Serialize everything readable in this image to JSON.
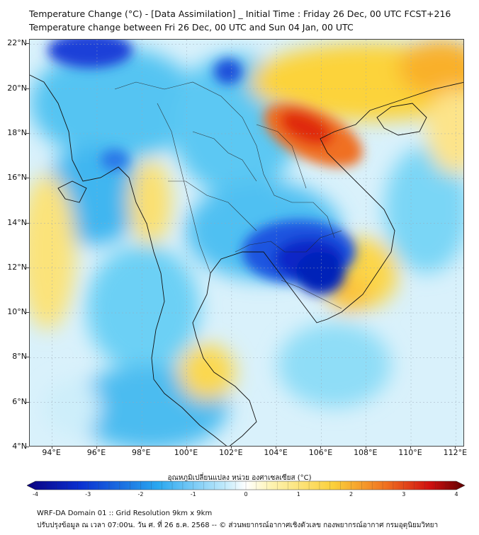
{
  "header": {
    "title_line1": "Temperature Change (°C) - [Data Assimilation] _ Initial Time : Friday 26 Dec, 00 UTC FCST+216",
    "title_line2": "Temperature change between Fri 26 Dec, 00 UTC and Sun 04 Jan, 00 UTC"
  },
  "map": {
    "lat_labels": [
      "22°N",
      "20°N",
      "18°N",
      "16°N",
      "14°N",
      "12°N",
      "10°N",
      "8°N",
      "6°N",
      "4°N"
    ],
    "lon_labels": [
      "94°E",
      "96°E",
      "98°E",
      "100°E",
      "102°E",
      "104°E",
      "106°E",
      "108°E",
      "110°E",
      "112°E"
    ],
    "lat_values": [
      22,
      20,
      18,
      16,
      14,
      12,
      10,
      8,
      6,
      4
    ],
    "lon_values": [
      94,
      96,
      98,
      100,
      102,
      104,
      106,
      108,
      110,
      112
    ],
    "lat_range": [
      4,
      22.2
    ],
    "lon_range": [
      93,
      112.4
    ],
    "gridlines": true,
    "colors": {
      "strong_cooling": "#0a2fd0",
      "cooling": "#2aa8f0",
      "neutral": "#d9f1fb",
      "warming": "#fbe05a",
      "strong_warming": "#e02010"
    }
  },
  "colorbar": {
    "label": "อุณหภูมิเปลี่ยนแปลง หน่วย องศาเซลเซียส (°C)",
    "ticks": [
      "-4",
      "-3",
      "-2",
      "-1",
      "0",
      "1",
      "2",
      "3",
      "4"
    ],
    "tick_values": [
      -4,
      -3,
      -2,
      -1,
      0,
      1,
      2,
      3,
      4
    ],
    "range": [
      -4,
      4
    ]
  },
  "footer": {
    "line1": "WRF-DA Domain 01 :: Grid Resolution 9km x 9km",
    "line2": "ปรับปรุงข้อมูล ณ เวลา 07:00น. วัน ศ. ที่ 26 ธ.ค. 2568 -- © ส่วนพยากรณ์อากาศเชิงตัวเลข กองพยากรณ์อากาศ กรมอุตุนิยมวิทยา"
  }
}
